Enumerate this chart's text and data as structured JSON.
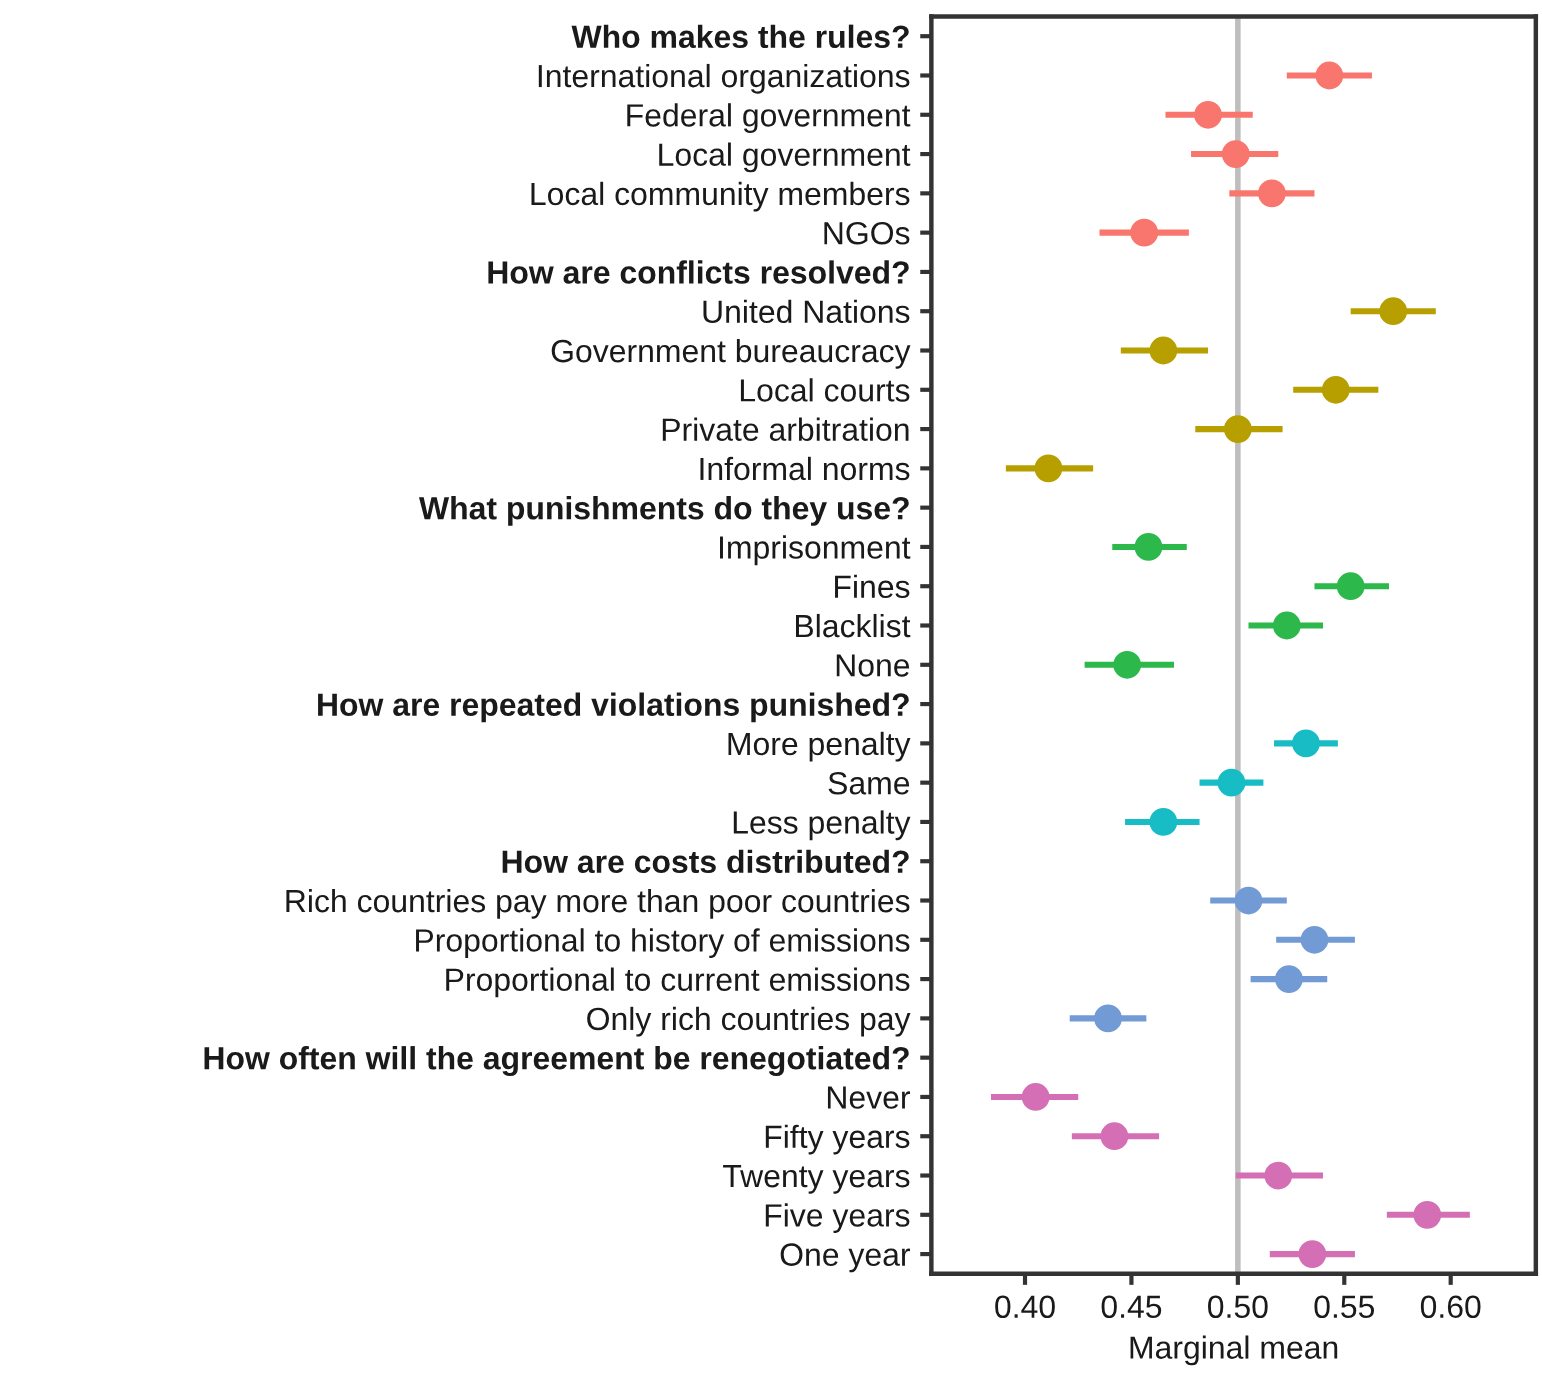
{
  "chart_data": {
    "type": "scatter",
    "orientation": "horizontal",
    "xlabel": "Marginal mean",
    "categories": [
      "Who makes the rules?",
      "International organizations",
      "Federal government",
      "Local government",
      "Local community members",
      "NGOs",
      "How are conflicts resolved?",
      "United Nations",
      "Government bureaucracy",
      "Local courts",
      "Private arbitration",
      "Informal norms",
      "What punishments do they use?",
      "Imprisonment",
      "Fines",
      "Blacklist",
      "None",
      "How are repeated violations punished?",
      "More penalty",
      "Same",
      "Less penalty",
      "How are costs distributed?",
      "Rich countries pay more than poor countries",
      "Proportional to history of emissions",
      "Proportional to current emissions",
      "Only rich countries pay",
      "How often will the agreement be renegotiated?",
      "Never",
      "Fifty years",
      "Twenty years",
      "Five years",
      "One year"
    ],
    "series": [
      {
        "color": "#f8766d",
        "values": [
          null,
          0.543,
          0.486,
          0.499,
          0.516,
          0.456,
          null,
          null,
          null,
          null,
          null,
          null,
          null,
          null,
          null,
          null,
          null,
          null,
          null,
          null,
          null,
          null,
          null,
          null,
          null,
          null,
          null,
          null,
          null,
          null,
          null,
          null
        ],
        "errors": [
          null,
          [
            0.523,
            0.563
          ],
          [
            0.466,
            0.507
          ],
          [
            0.478,
            0.519
          ],
          [
            0.496,
            0.536
          ],
          [
            0.435,
            0.477
          ],
          null,
          null,
          null,
          null,
          null,
          null,
          null,
          null,
          null,
          null,
          null,
          null,
          null,
          null,
          null,
          null,
          null,
          null,
          null,
          null,
          null,
          null,
          null,
          null,
          null,
          null
        ]
      },
      {
        "color": "#b79f00",
        "values": [
          null,
          null,
          null,
          null,
          null,
          null,
          null,
          0.573,
          0.465,
          0.546,
          0.5,
          0.411,
          null,
          null,
          null,
          null,
          null,
          null,
          null,
          null,
          null,
          null,
          null,
          null,
          null,
          null,
          null,
          null,
          null,
          null,
          null,
          null
        ],
        "errors": [
          null,
          null,
          null,
          null,
          null,
          null,
          null,
          [
            0.553,
            0.593
          ],
          [
            0.445,
            0.486
          ],
          [
            0.526,
            0.566
          ],
          [
            0.48,
            0.521
          ],
          [
            0.391,
            0.432
          ],
          null,
          null,
          null,
          null,
          null,
          null,
          null,
          null,
          null,
          null,
          null,
          null,
          null,
          null,
          null,
          null,
          null,
          null,
          null,
          null
        ]
      },
      {
        "color": "#2db84c",
        "values": [
          null,
          null,
          null,
          null,
          null,
          null,
          null,
          null,
          null,
          null,
          null,
          null,
          null,
          0.458,
          0.553,
          0.523,
          0.448,
          null,
          null,
          null,
          null,
          null,
          null,
          null,
          null,
          null,
          null,
          null,
          null,
          null,
          null,
          null
        ],
        "errors": [
          null,
          null,
          null,
          null,
          null,
          null,
          null,
          null,
          null,
          null,
          null,
          null,
          null,
          [
            0.441,
            0.476
          ],
          [
            0.536,
            0.571
          ],
          [
            0.505,
            0.54
          ],
          [
            0.428,
            0.47
          ],
          null,
          null,
          null,
          null,
          null,
          null,
          null,
          null,
          null,
          null,
          null,
          null,
          null,
          null,
          null
        ]
      },
      {
        "color": "#17bcc4",
        "values": [
          null,
          null,
          null,
          null,
          null,
          null,
          null,
          null,
          null,
          null,
          null,
          null,
          null,
          null,
          null,
          null,
          null,
          null,
          0.532,
          0.497,
          0.465,
          null,
          null,
          null,
          null,
          null,
          null,
          null,
          null,
          null,
          null,
          null
        ],
        "errors": [
          null,
          null,
          null,
          null,
          null,
          null,
          null,
          null,
          null,
          null,
          null,
          null,
          null,
          null,
          null,
          null,
          null,
          null,
          [
            0.517,
            0.547
          ],
          [
            0.482,
            0.512
          ],
          [
            0.447,
            0.482
          ],
          null,
          null,
          null,
          null,
          null,
          null,
          null,
          null,
          null,
          null,
          null
        ]
      },
      {
        "color": "#729bd6",
        "values": [
          null,
          null,
          null,
          null,
          null,
          null,
          null,
          null,
          null,
          null,
          null,
          null,
          null,
          null,
          null,
          null,
          null,
          null,
          null,
          null,
          null,
          null,
          0.505,
          0.536,
          0.524,
          0.439,
          null,
          null,
          null,
          null,
          null,
          null
        ],
        "errors": [
          null,
          null,
          null,
          null,
          null,
          null,
          null,
          null,
          null,
          null,
          null,
          null,
          null,
          null,
          null,
          null,
          null,
          null,
          null,
          null,
          null,
          null,
          [
            0.487,
            0.523
          ],
          [
            0.518,
            0.555
          ],
          [
            0.506,
            0.542
          ],
          [
            0.421,
            0.457
          ],
          null,
          null,
          null,
          null,
          null,
          null
        ]
      },
      {
        "color": "#d46fb5",
        "values": [
          null,
          null,
          null,
          null,
          null,
          null,
          null,
          null,
          null,
          null,
          null,
          null,
          null,
          null,
          null,
          null,
          null,
          null,
          null,
          null,
          null,
          null,
          null,
          null,
          null,
          null,
          null,
          0.405,
          0.442,
          0.519,
          0.589,
          0.535
        ],
        "errors": [
          null,
          null,
          null,
          null,
          null,
          null,
          null,
          null,
          null,
          null,
          null,
          null,
          null,
          null,
          null,
          null,
          null,
          null,
          null,
          null,
          null,
          null,
          null,
          null,
          null,
          null,
          null,
          [
            0.384,
            0.425
          ],
          [
            0.422,
            0.463
          ],
          [
            0.499,
            0.54
          ],
          [
            0.57,
            0.609
          ],
          [
            0.515,
            0.555
          ]
        ]
      }
    ],
    "xlim": [
      0.356,
      0.64
    ],
    "xticks": [
      {
        "value": 0.4,
        "label": "0.40"
      },
      {
        "value": 0.45,
        "label": "0.45"
      },
      {
        "value": 0.5,
        "label": "0.50"
      },
      {
        "value": 0.55,
        "label": "0.55"
      },
      {
        "value": 0.6,
        "label": "0.60"
      }
    ],
    "ref_lines": [
      {
        "axis": "x",
        "value": 0.5,
        "color": "#bebebe"
      }
    ],
    "marker": "circle",
    "grid": false,
    "legend": false
  }
}
